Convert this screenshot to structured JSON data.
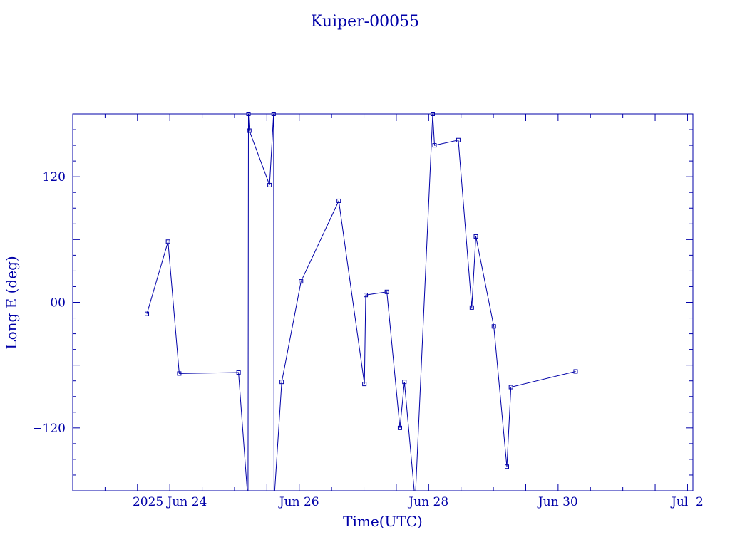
{
  "chart_data": {
    "type": "line",
    "title": "Kuiper-00055",
    "xlabel": "Time(UTC)",
    "ylabel": "Long E (deg)",
    "color": "#0000a8",
    "xlim": [
      "2025-06-22 12:00",
      "2025-07-02 02:00"
    ],
    "ylim": [
      -180,
      180
    ],
    "x_ticks": [
      {
        "t": "2025-06-24 00:00",
        "label": "2025 Jun 24"
      },
      {
        "t": "2025-06-26 00:00",
        "label": "Jun 26"
      },
      {
        "t": "2025-06-28 00:00",
        "label": "Jun 28"
      },
      {
        "t": "2025-06-30 00:00",
        "label": "Jun 30"
      },
      {
        "t": "2025-07-02 00:00",
        "label": "Jul  2"
      }
    ],
    "y_ticks": [
      {
        "v": -120,
        "label": "−120"
      },
      {
        "v": 0,
        "label": "00"
      },
      {
        "v": 120,
        "label": "120"
      }
    ],
    "series": [
      {
        "points": [
          {
            "t": "2025-06-23 15:30",
            "y": -11
          },
          {
            "t": "2025-06-23 23:20",
            "y": 58
          },
          {
            "t": "2025-06-24 03:30",
            "y": -68
          },
          {
            "t": "2025-06-25 01:30",
            "y": -67
          },
          {
            "t": "2025-06-25 05:00",
            "y": -190
          },
          {
            "t": "2025-06-25 05:10",
            "y": 180
          },
          {
            "t": "2025-06-25 05:30",
            "y": 164
          },
          {
            "t": "2025-06-25 13:00",
            "y": 112
          },
          {
            "t": "2025-06-25 14:30",
            "y": 180
          },
          {
            "t": "2025-06-25 14:40",
            "y": -190
          },
          {
            "t": "2025-06-25 17:30",
            "y": -76
          },
          {
            "t": "2025-06-26 00:40",
            "y": 20
          },
          {
            "t": "2025-06-26 14:40",
            "y": 97
          },
          {
            "t": "2025-06-27 00:10",
            "y": -78
          },
          {
            "t": "2025-06-27 00:40",
            "y": 7
          },
          {
            "t": "2025-06-27 08:30",
            "y": 10
          },
          {
            "t": "2025-06-27 13:20",
            "y": -120
          },
          {
            "t": "2025-06-27 15:00",
            "y": -76
          },
          {
            "t": "2025-06-27 19:00",
            "y": -190
          },
          {
            "t": "2025-06-28 01:30",
            "y": 180
          },
          {
            "t": "2025-06-28 02:10",
            "y": 150
          },
          {
            "t": "2025-06-28 11:00",
            "y": 155
          },
          {
            "t": "2025-06-28 16:00",
            "y": -5
          },
          {
            "t": "2025-06-28 17:30",
            "y": 63
          },
          {
            "t": "2025-06-29 00:10",
            "y": -23
          },
          {
            "t": "2025-06-29 05:00",
            "y": -157
          },
          {
            "t": "2025-06-29 06:30",
            "y": -81
          },
          {
            "t": "2025-06-30 06:30",
            "y": -66
          }
        ]
      }
    ]
  }
}
